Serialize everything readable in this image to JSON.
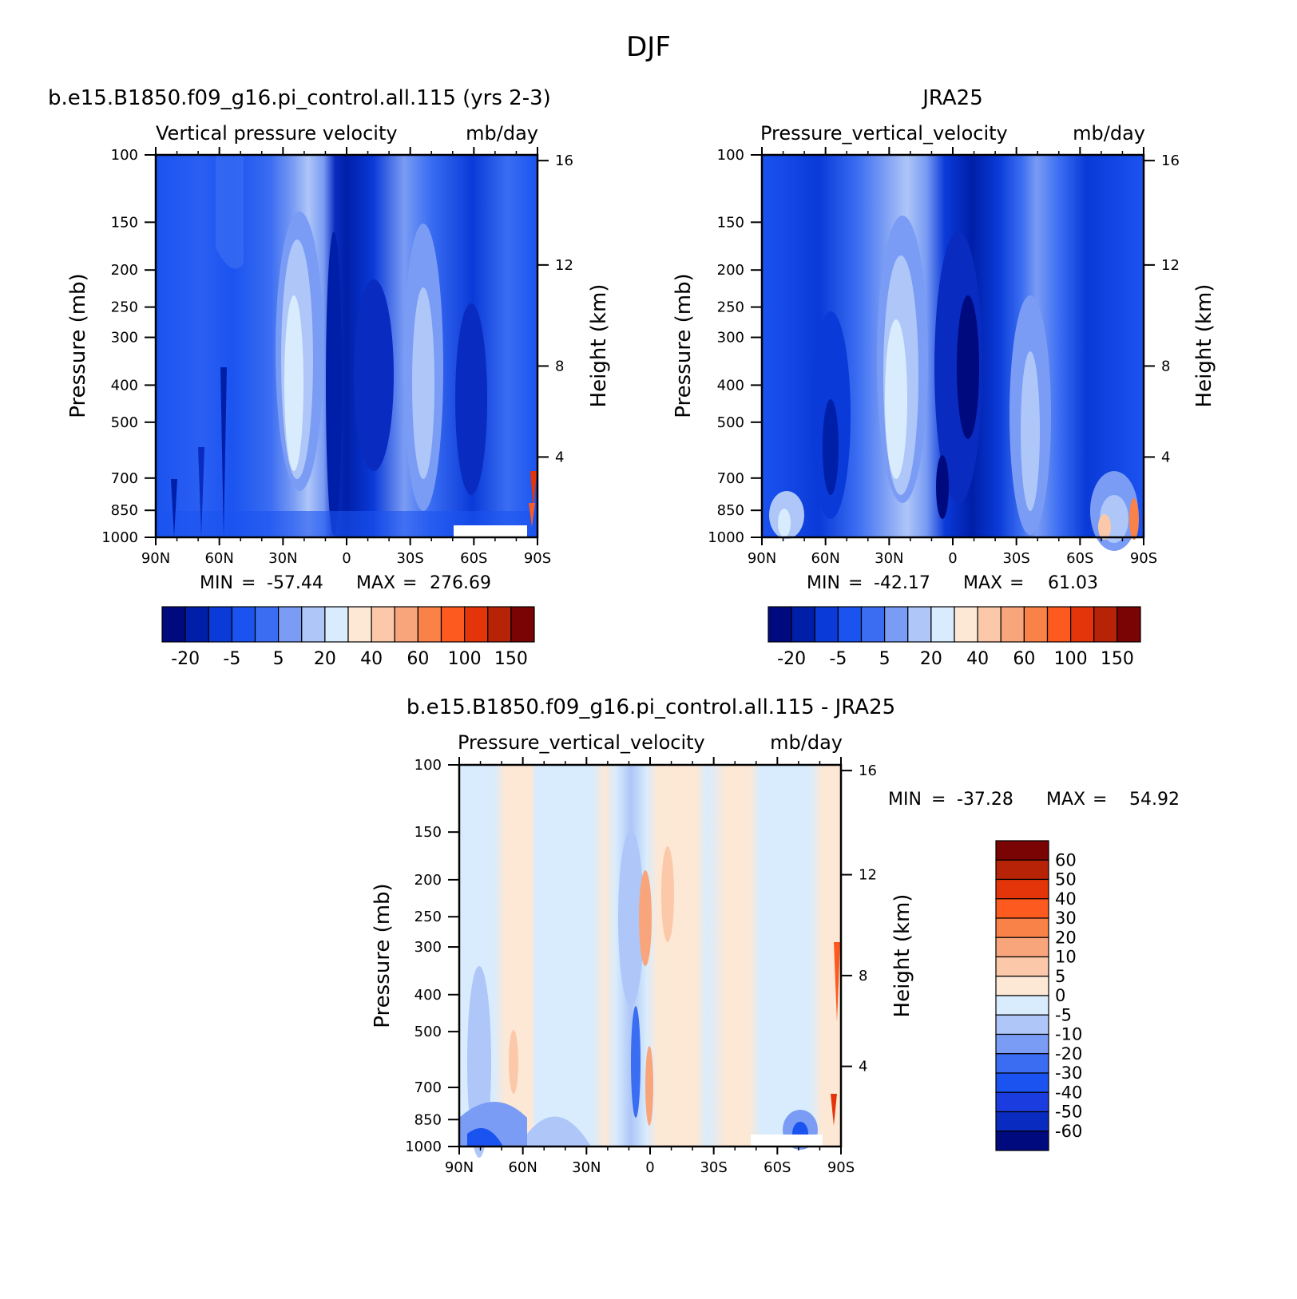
{
  "page": {
    "title": "DJF"
  },
  "colors": {
    "blue_10": [
      "#000a7f",
      "#001fa8",
      "#0a3ad8",
      "#1b53f0",
      "#3a6df2",
      "#7a9cf4",
      "#aec6f8",
      "#d8ecfd"
    ],
    "red_8": [
      "#fde8d6",
      "#fbc9aa",
      "#f9a57c",
      "#f98249",
      "#fd5a1f",
      "#e33509",
      "#b62306",
      "#7a0303"
    ],
    "diff_blue": [
      "#000a7f",
      "#0a2bbf",
      "#1b3de0",
      "#1b53f0",
      "#3a6df2",
      "#7a9cf4",
      "#aec6f8",
      "#d8ecfd"
    ],
    "diff_red": [
      "#fde8d6",
      "#fbc9aa",
      "#f9a57c",
      "#f98249",
      "#fd5a1f",
      "#e33509",
      "#b62306",
      "#7a0303"
    ]
  },
  "chart_data": [
    {
      "type": "heatmap",
      "id": "model",
      "title": "b.e15.B1850.f09_g16.pi_control.all.115 (yrs 2-3)",
      "subtitle_left": "Vertical pressure velocity",
      "subtitle_right": "mb/day",
      "xlabel": "",
      "ylabel": "Pressure (mb)",
      "ylabel_right": "Height (km)",
      "x_ticks": [
        "90N",
        "60N",
        "30N",
        "0",
        "30S",
        "60S",
        "90S"
      ],
      "y_ticks": [
        "100",
        "150",
        "200",
        "250",
        "300",
        "400",
        "500",
        "700",
        "850",
        "1000"
      ],
      "y_ticks_right": [
        "16",
        "12",
        "8",
        "4"
      ],
      "ylim": [
        1000,
        100
      ],
      "xlim": [
        90,
        -90
      ],
      "min_label": "MIN",
      "max_label": "MAX",
      "eq": "=",
      "min": "-57.44",
      "max": "276.69",
      "colorbar_labels": [
        "-20",
        "-5",
        "5",
        "20",
        "40",
        "60",
        "100",
        "150"
      ]
    },
    {
      "type": "heatmap",
      "id": "obs",
      "title": "JRA25",
      "subtitle_left": "Pressure_vertical_velocity",
      "subtitle_right": "mb/day",
      "xlabel": "",
      "ylabel": "Pressure (mb)",
      "ylabel_right": "Height (km)",
      "x_ticks": [
        "90N",
        "60N",
        "30N",
        "0",
        "30S",
        "60S",
        "90S"
      ],
      "y_ticks": [
        "100",
        "150",
        "200",
        "250",
        "300",
        "400",
        "500",
        "700",
        "850",
        "1000"
      ],
      "y_ticks_right": [
        "16",
        "12",
        "8",
        "4"
      ],
      "ylim": [
        1000,
        100
      ],
      "xlim": [
        90,
        -90
      ],
      "min_label": "MIN",
      "max_label": "MAX",
      "eq": "=",
      "min": "-42.17",
      "max": "61.03",
      "colorbar_labels": [
        "-20",
        "-5",
        "5",
        "20",
        "40",
        "60",
        "100",
        "150"
      ]
    },
    {
      "type": "heatmap",
      "id": "diff",
      "title": "b.e15.B1850.f09_g16.pi_control.all.115 - JRA25",
      "subtitle_left": "Pressure_vertical_velocity",
      "subtitle_right": "mb/day",
      "xlabel": "",
      "ylabel": "Pressure (mb)",
      "ylabel_right": "Height (km)",
      "x_ticks": [
        "90N",
        "60N",
        "30N",
        "0",
        "30S",
        "60S",
        "90S"
      ],
      "y_ticks": [
        "100",
        "150",
        "200",
        "250",
        "300",
        "400",
        "500",
        "700",
        "850",
        "1000"
      ],
      "y_ticks_right": [
        "16",
        "12",
        "8",
        "4"
      ],
      "ylim": [
        1000,
        100
      ],
      "xlim": [
        90,
        -90
      ],
      "min_label": "MIN",
      "max_label": "MAX",
      "eq": "=",
      "min": "-37.28",
      "max": "54.92",
      "colorbar_labels": [
        "60",
        "50",
        "40",
        "30",
        "20",
        "10",
        "5",
        "0",
        "-5",
        "-10",
        "-20",
        "-30",
        "-40",
        "-50",
        "-60"
      ]
    }
  ]
}
